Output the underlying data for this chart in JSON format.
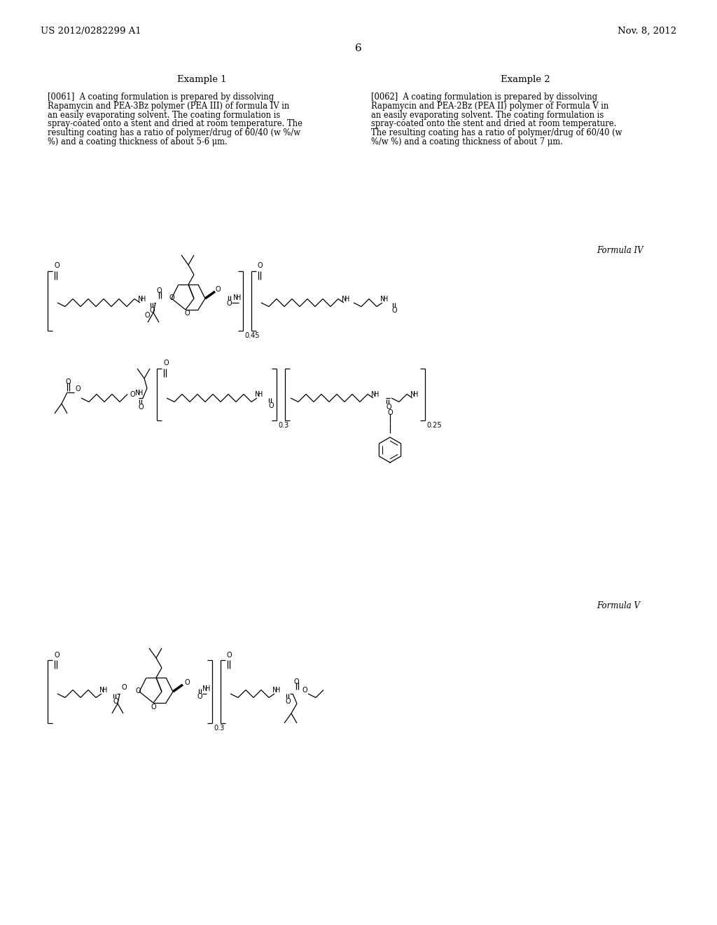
{
  "background_color": "#ffffff",
  "page_number": "6",
  "header_left": "US 2012/0282299 A1",
  "header_right": "Nov. 8, 2012",
  "example1_title": "Example 1",
  "example2_title": "Example 2",
  "example1_lines": [
    "[0061]  A coating formulation is prepared by dissolving",
    "Rapamycin and PEA-3Bz polymer (PEA III) of formula IV in",
    "an easily evaporating solvent. The coating formulation is",
    "spray-coated onto a stent and dried at room temperature. The",
    "resulting coating has a ratio of polymer/drug of 60/40 (w %/w",
    "%) and a coating thickness of about 5-6 μm."
  ],
  "example2_lines": [
    "[0062]  A coating formulation is prepared by dissolving",
    "Rapamycin and PEA-2Bz (PEA II) polymer of Formula V in",
    "an easily evaporating solvent. The coating formulation is",
    "spray-coated onto the stent and dried at room temperature.",
    "The resulting coating has a ratio of polymer/drug of 60/40 (w",
    "%/w %) and a coating thickness of about 7 μm."
  ],
  "formula_iv_label": "Formula IV",
  "formula_v_label": "Formula V",
  "sub_045": "0.45",
  "sub_03": "0.3",
  "sub_025": "0.25",
  "sub_03v": "0.3"
}
